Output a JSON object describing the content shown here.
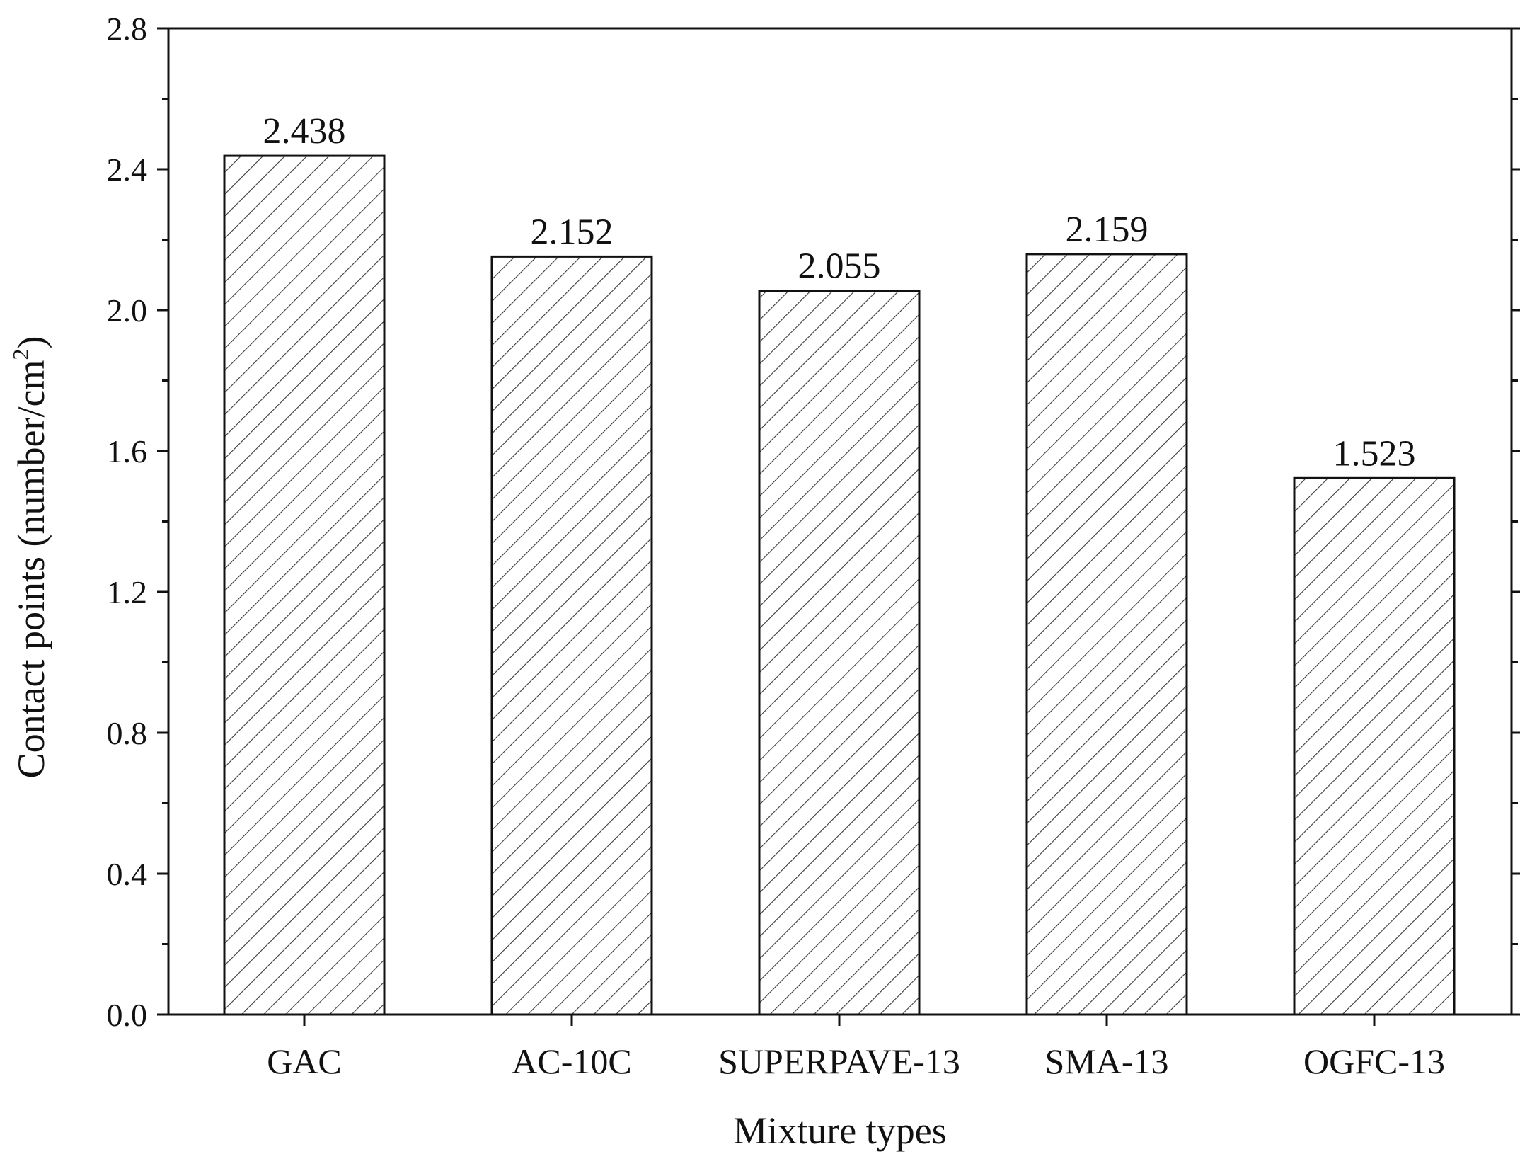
{
  "chart_data": {
    "type": "bar",
    "title": "",
    "xlabel": "Mixture types",
    "ylabel": {
      "main": "Contact points (number/cm",
      "superscript": "2",
      "close": ")"
    },
    "categories": [
      "GAC",
      "AC-10C",
      "SUPERPAVE-13",
      "SMA-13",
      "OGFC-13"
    ],
    "values": [
      2.438,
      2.152,
      2.055,
      2.159,
      1.523
    ],
    "value_labels": [
      "2.438",
      "2.152",
      "2.055",
      "2.159",
      "1.523"
    ],
    "ylim": [
      0,
      2.8
    ],
    "yticks": [
      0.0,
      0.4,
      0.8,
      1.2,
      1.6,
      2.0,
      2.4,
      2.8
    ],
    "ytick_labels": [
      "0.0",
      "0.4",
      "0.8",
      "1.2",
      "1.6",
      "2.0",
      "2.4",
      "2.8"
    ],
    "bar_fill": "hatched diagonal",
    "bar_color": "#ffffff",
    "hatch_color": "#333333",
    "axis_color": "#111111",
    "grid": false,
    "legend": "none"
  }
}
